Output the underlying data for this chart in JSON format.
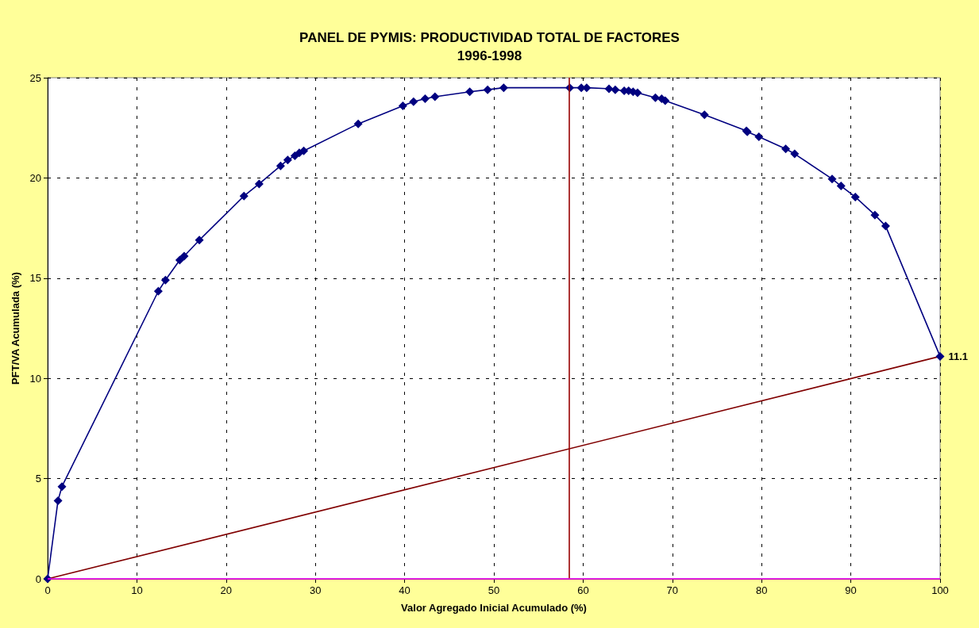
{
  "chart_data": {
    "type": "line",
    "title": "PANEL DE PYMIS: PRODUCTIVIDAD TOTAL DE FACTORES",
    "subtitle": "1996-1998",
    "xlabel": "Valor Agregado Inicial Acumulado (%)",
    "ylabel": "PFT/VA Acumulada (%)",
    "xlim": [
      0,
      100
    ],
    "xticks": [
      0,
      10,
      20,
      30,
      40,
      50,
      60,
      70,
      80,
      90,
      100
    ],
    "ylim": [
      0,
      25
    ],
    "yticks": [
      0,
      5,
      10,
      15,
      20,
      25
    ],
    "grid": true,
    "marker": "diamond",
    "line_style": "solid",
    "series": [
      {
        "color": "#000080",
        "x": [
          0,
          1.16,
          1.6,
          12.4,
          13.2,
          14.8,
          15.3,
          17.0,
          22.0,
          23.7,
          26.1,
          26.9,
          27.7,
          28.2,
          28.7,
          34.8,
          39.8,
          41.0,
          42.3,
          43.4,
          47.3,
          49.3,
          51.1,
          58.5,
          59.8,
          60.4,
          62.9,
          63.6,
          64.6,
          65.1,
          65.6,
          66.1,
          68.1,
          68.8,
          69.2,
          73.6,
          78.3,
          78.4,
          79.7,
          82.7,
          83.7,
          87.9,
          88.9,
          90.5,
          92.7,
          93.9,
          100
        ],
        "values": [
          0,
          3.9,
          4.6,
          14.35,
          14.9,
          15.9,
          16.1,
          16.9,
          19.1,
          19.7,
          20.6,
          20.9,
          21.1,
          21.25,
          21.35,
          22.7,
          23.6,
          23.8,
          23.95,
          24.05,
          24.3,
          24.4,
          24.5,
          24.5,
          24.5,
          24.5,
          24.45,
          24.4,
          24.35,
          24.35,
          24.3,
          24.25,
          24.0,
          23.95,
          23.85,
          23.15,
          22.35,
          22.3,
          22.05,
          21.45,
          21.2,
          19.95,
          19.6,
          19.05,
          18.15,
          17.6,
          11.1
        ],
        "value_labels": [
          null,
          null,
          null,
          null,
          null,
          null,
          null,
          null,
          null,
          null,
          null,
          null,
          null,
          null,
          null,
          null,
          null,
          null,
          null,
          null,
          null,
          null,
          null,
          null,
          null,
          null,
          null,
          null,
          null,
          null,
          null,
          null,
          null,
          null,
          null,
          null,
          null,
          null,
          null,
          null,
          null,
          null,
          null,
          null,
          null,
          null,
          "11.1"
        ]
      },
      {
        "color": "#800000",
        "marker": "none",
        "x": [
          0,
          100
        ],
        "values": [
          0,
          11.1
        ]
      }
    ],
    "ref_lines": [
      {
        "axis": "x",
        "value": 58.4,
        "color": "#990000"
      },
      {
        "axis": "y",
        "value": 0,
        "color": "#ff00ff"
      }
    ]
  }
}
